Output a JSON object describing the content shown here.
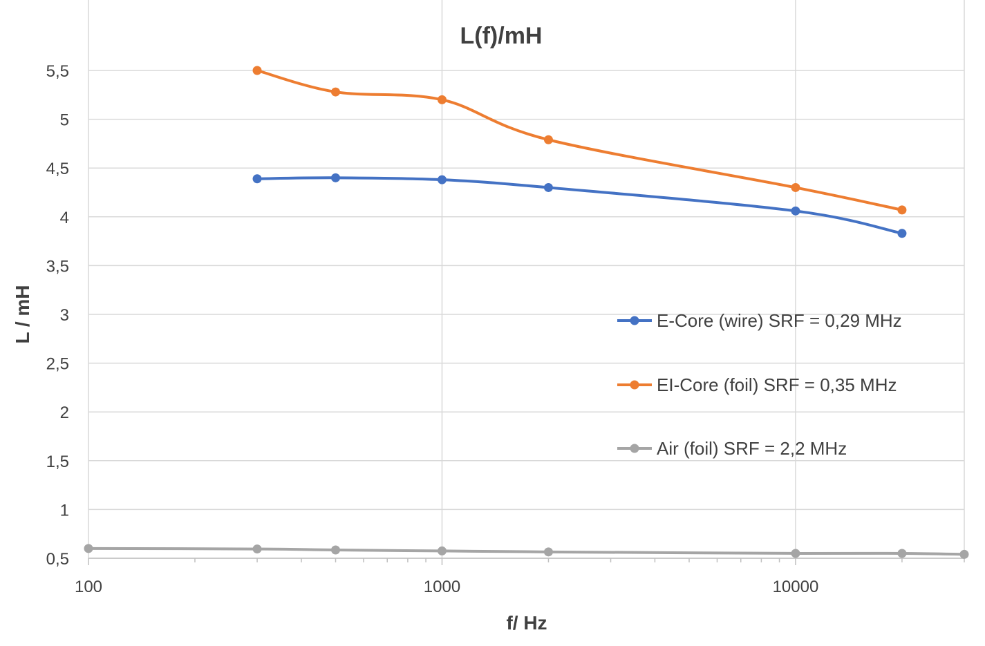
{
  "chart_data": {
    "type": "line",
    "title": "L(f)/mH",
    "xlabel": "f/ Hz",
    "ylabel": "L / mH",
    "x_scale": "log",
    "xlim": [
      100,
      30000
    ],
    "ylim": [
      0.5,
      5.5
    ],
    "x_tick_labels": [
      "100",
      "1000",
      "10000"
    ],
    "x_tick_values": [
      100,
      1000,
      10000
    ],
    "y_tick_labels": [
      "0,5",
      "1",
      "1,5",
      "2",
      "2,5",
      "3",
      "3,5",
      "4",
      "4,5",
      "5",
      "5,5"
    ],
    "y_tick_values": [
      0.5,
      1,
      1.5,
      2,
      2.5,
      3,
      3.5,
      4,
      4.5,
      5,
      5.5
    ],
    "grid": true,
    "legend_position": "right",
    "series": [
      {
        "name": "E-Core (wire) SRF = 0,29 MHz",
        "color": "#4472c4",
        "markers": true,
        "points": [
          {
            "x": 300,
            "y": 4.39
          },
          {
            "x": 500,
            "y": 4.4
          },
          {
            "x": 1000,
            "y": 4.38
          },
          {
            "x": 2000,
            "y": 4.3
          },
          {
            "x": 10000,
            "y": 4.06
          },
          {
            "x": 20000,
            "y": 3.83
          }
        ]
      },
      {
        "name": "EI-Core (foil) SRF = 0,35 MHz",
        "color": "#ed7d31",
        "markers": true,
        "points": [
          {
            "x": 300,
            "y": 5.5
          },
          {
            "x": 500,
            "y": 5.28
          },
          {
            "x": 1000,
            "y": 5.2
          },
          {
            "x": 2000,
            "y": 4.79
          },
          {
            "x": 10000,
            "y": 4.3
          },
          {
            "x": 20000,
            "y": 4.07
          }
        ]
      },
      {
        "name": "Air (foil) SRF = 2,2 MHz",
        "color": "#a5a5a5",
        "markers": true,
        "points": [
          {
            "x": 100,
            "y": 0.6
          },
          {
            "x": 300,
            "y": 0.595
          },
          {
            "x": 500,
            "y": 0.585
          },
          {
            "x": 1000,
            "y": 0.575
          },
          {
            "x": 2000,
            "y": 0.565
          },
          {
            "x": 10000,
            "y": 0.55
          },
          {
            "x": 20000,
            "y": 0.55
          },
          {
            "x": 30000,
            "y": 0.54
          }
        ]
      }
    ]
  }
}
